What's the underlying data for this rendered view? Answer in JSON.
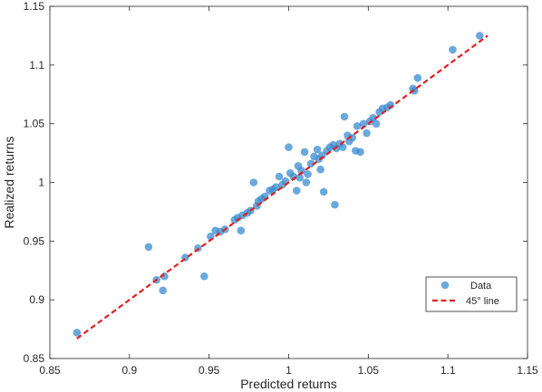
{
  "chart_data": {
    "type": "scatter",
    "title": "",
    "xlabel": "Predicted returns",
    "ylabel": "Realized returns",
    "xlim": [
      0.85,
      1.15
    ],
    "ylim": [
      0.85,
      1.15
    ],
    "xticks": [
      "0.85",
      "0.9",
      "0.95",
      "1",
      "1.05",
      "1.1",
      "1.15"
    ],
    "yticks": [
      "0.85",
      "0.9",
      "0.95",
      "1",
      "1.05",
      "1.1",
      "1.15"
    ],
    "grid": false,
    "legend_position": "bottom-right",
    "series": [
      {
        "name": "Data",
        "kind": "scatter",
        "color": "#3a8cd0",
        "points": [
          [
            0.867,
            0.872
          ],
          [
            0.912,
            0.945
          ],
          [
            0.917,
            0.917
          ],
          [
            0.921,
            0.908
          ],
          [
            0.922,
            0.92
          ],
          [
            0.935,
            0.936
          ],
          [
            0.943,
            0.944
          ],
          [
            0.947,
            0.92
          ],
          [
            0.951,
            0.954
          ],
          [
            0.954,
            0.959
          ],
          [
            0.957,
            0.958
          ],
          [
            0.96,
            0.96
          ],
          [
            0.966,
            0.968
          ],
          [
            0.968,
            0.97
          ],
          [
            0.97,
            0.959
          ],
          [
            0.971,
            0.972
          ],
          [
            0.974,
            0.974
          ],
          [
            0.976,
            0.976
          ],
          [
            0.978,
            1.0
          ],
          [
            0.98,
            0.98
          ],
          [
            0.981,
            0.984
          ],
          [
            0.983,
            0.986
          ],
          [
            0.985,
            0.988
          ],
          [
            0.988,
            0.993
          ],
          [
            0.99,
            0.994
          ],
          [
            0.992,
            0.996
          ],
          [
            0.994,
            1.005
          ],
          [
            0.996,
            0.998
          ],
          [
            0.998,
            1.001
          ],
          [
            1.0,
            1.03
          ],
          [
            1.001,
            1.008
          ],
          [
            1.003,
            1.005
          ],
          [
            1.005,
            0.993
          ],
          [
            1.006,
            1.014
          ],
          [
            1.007,
            1.004
          ],
          [
            1.008,
            1.01
          ],
          [
            1.01,
            1.026
          ],
          [
            1.011,
            1.0
          ],
          [
            1.012,
            1.007
          ],
          [
            1.014,
            1.016
          ],
          [
            1.016,
            1.022
          ],
          [
            1.018,
            1.028
          ],
          [
            1.019,
            1.02
          ],
          [
            1.02,
            1.011
          ],
          [
            1.021,
            1.023
          ],
          [
            1.022,
            0.992
          ],
          [
            1.024,
            1.027
          ],
          [
            1.026,
            1.03
          ],
          [
            1.028,
            1.032
          ],
          [
            1.029,
            0.981
          ],
          [
            1.03,
            1.029
          ],
          [
            1.032,
            1.033
          ],
          [
            1.034,
            1.03
          ],
          [
            1.035,
            1.056
          ],
          [
            1.037,
            1.04
          ],
          [
            1.038,
            1.035
          ],
          [
            1.04,
            1.038
          ],
          [
            1.042,
            1.027
          ],
          [
            1.043,
            1.048
          ],
          [
            1.045,
            1.026
          ],
          [
            1.047,
            1.05
          ],
          [
            1.049,
            1.042
          ],
          [
            1.051,
            1.052
          ],
          [
            1.053,
            1.055
          ],
          [
            1.055,
            1.05
          ],
          [
            1.057,
            1.06
          ],
          [
            1.059,
            1.063
          ],
          [
            1.062,
            1.064
          ],
          [
            1.064,
            1.066
          ],
          [
            1.078,
            1.08
          ],
          [
            1.079,
            1.078
          ],
          [
            1.081,
            1.089
          ],
          [
            1.103,
            1.113
          ],
          [
            1.12,
            1.125
          ]
        ]
      },
      {
        "name": "45° line",
        "kind": "line",
        "color": "#e02020",
        "dash": "dashed",
        "points": [
          [
            0.867,
            0.867
          ],
          [
            1.125,
            1.125
          ]
        ]
      }
    ]
  }
}
